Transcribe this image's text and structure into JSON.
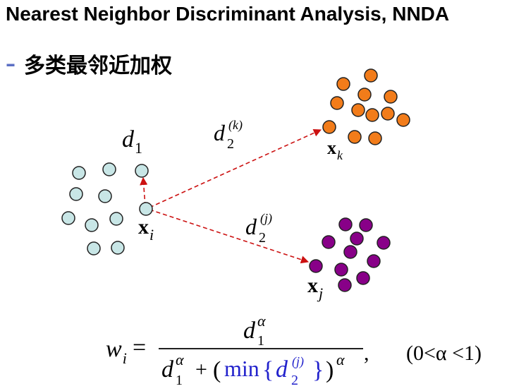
{
  "title": "Nearest Neighbor Discriminant Analysis, NNDA",
  "bullet": "多类最邻近加权",
  "labels": {
    "d1": "d",
    "d1_sub": "1",
    "d2k": "d",
    "d2k_sub": "2",
    "d2k_sup": "(k)",
    "d2j": "d",
    "d2j_sub": "2",
    "d2j_sup": "(j)",
    "xi": "x",
    "xi_sub": "i",
    "xk": "x",
    "xk_sub": "k",
    "xj": "x",
    "xj_sub": "j"
  },
  "formula": {
    "lhs": "w",
    "lhs_sub": "i",
    "eq": "=",
    "num": "d",
    "num_sub": "1",
    "num_sup": "α",
    "den_d": "d",
    "den_sub": "1",
    "den_sup": "α",
    "plus": "+",
    "open": "(",
    "min": "min",
    "brace_open": "{",
    "inner_d": "d",
    "inner_sub": "2",
    "inner_sup": "(j)",
    "brace_close": "}",
    "close": ")",
    "outer_sup": "α",
    "comma": ",",
    "cond": "(0<α <1)"
  },
  "colors": {
    "cyan": "#c8e6e6",
    "orange": "#f27c1a",
    "purple": "#880088",
    "arrow": "#cc1111",
    "dash": "#5b6fc4",
    "blue": "#2222cc"
  }
}
